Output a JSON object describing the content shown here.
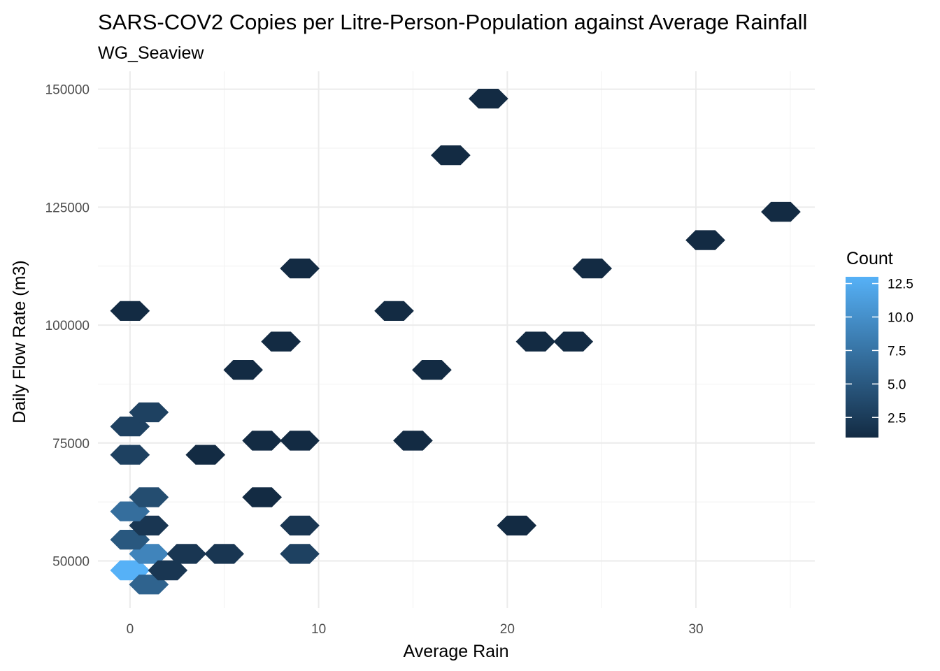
{
  "chart_data": {
    "type": "heatmap",
    "subtype": "hexbin",
    "title": "SARS-COV2 Copies per Litre-Person-Population against Average Rainfall",
    "subtitle": "WG_Seaview",
    "xlabel": "Average Rain",
    "ylabel": "Daily Flow Rate (m3)",
    "xlim": [
      -1.7,
      36.3
    ],
    "ylim": [
      40000,
      153800
    ],
    "x_ticks": [
      0,
      10,
      20,
      30
    ],
    "x_tick_labels": [
      "0",
      "10",
      "20",
      "30"
    ],
    "y_ticks": [
      50000,
      75000,
      100000,
      125000,
      150000
    ],
    "y_tick_labels": [
      "50000",
      "75000",
      "100000",
      "125000",
      "150000"
    ],
    "grid": true,
    "legend": {
      "title": "Count",
      "position": "right",
      "min": 1,
      "max": 13,
      "ticks": [
        2.5,
        5.0,
        7.5,
        10.0,
        12.5
      ],
      "tick_labels": [
        "2.5",
        "5.0",
        "7.5",
        "10.0",
        "12.5"
      ],
      "color_low": "#132B43",
      "color_high": "#56B1F7"
    },
    "hex_width": 2.0,
    "hex_height": 4000,
    "bins": [
      {
        "x": 0,
        "y": 48000,
        "count": 13
      },
      {
        "x": 1,
        "y": 45000,
        "count": 6
      },
      {
        "x": 1,
        "y": 51500,
        "count": 9
      },
      {
        "x": 2,
        "y": 48000,
        "count": 2
      },
      {
        "x": 3,
        "y": 51500,
        "count": 2
      },
      {
        "x": 5,
        "y": 51500,
        "count": 2
      },
      {
        "x": 9,
        "y": 51500,
        "count": 3
      },
      {
        "x": 0,
        "y": 54500,
        "count": 5
      },
      {
        "x": 1,
        "y": 57500,
        "count": 2
      },
      {
        "x": 9,
        "y": 57500,
        "count": 2
      },
      {
        "x": 20.5,
        "y": 57500,
        "count": 1
      },
      {
        "x": 0,
        "y": 60500,
        "count": 7
      },
      {
        "x": 1,
        "y": 63500,
        "count": 4
      },
      {
        "x": 7,
        "y": 63500,
        "count": 1
      },
      {
        "x": 0,
        "y": 72500,
        "count": 3
      },
      {
        "x": 4,
        "y": 72500,
        "count": 1
      },
      {
        "x": 7,
        "y": 75500,
        "count": 1
      },
      {
        "x": 9,
        "y": 75500,
        "count": 1
      },
      {
        "x": 15,
        "y": 75500,
        "count": 1
      },
      {
        "x": 0,
        "y": 78500,
        "count": 3
      },
      {
        "x": 1,
        "y": 81500,
        "count": 3
      },
      {
        "x": 6,
        "y": 90500,
        "count": 1
      },
      {
        "x": 16,
        "y": 90500,
        "count": 1
      },
      {
        "x": 8,
        "y": 96500,
        "count": 1
      },
      {
        "x": 21.5,
        "y": 96500,
        "count": 1
      },
      {
        "x": 23.5,
        "y": 96500,
        "count": 1
      },
      {
        "x": 0,
        "y": 103000,
        "count": 1
      },
      {
        "x": 14,
        "y": 103000,
        "count": 1
      },
      {
        "x": 9,
        "y": 112000,
        "count": 1
      },
      {
        "x": 24.5,
        "y": 112000,
        "count": 1
      },
      {
        "x": 30.5,
        "y": 118000,
        "count": 1
      },
      {
        "x": 34.5,
        "y": 124000,
        "count": 1
      },
      {
        "x": 17,
        "y": 136000,
        "count": 1
      },
      {
        "x": 19,
        "y": 148000,
        "count": 1
      }
    ]
  }
}
